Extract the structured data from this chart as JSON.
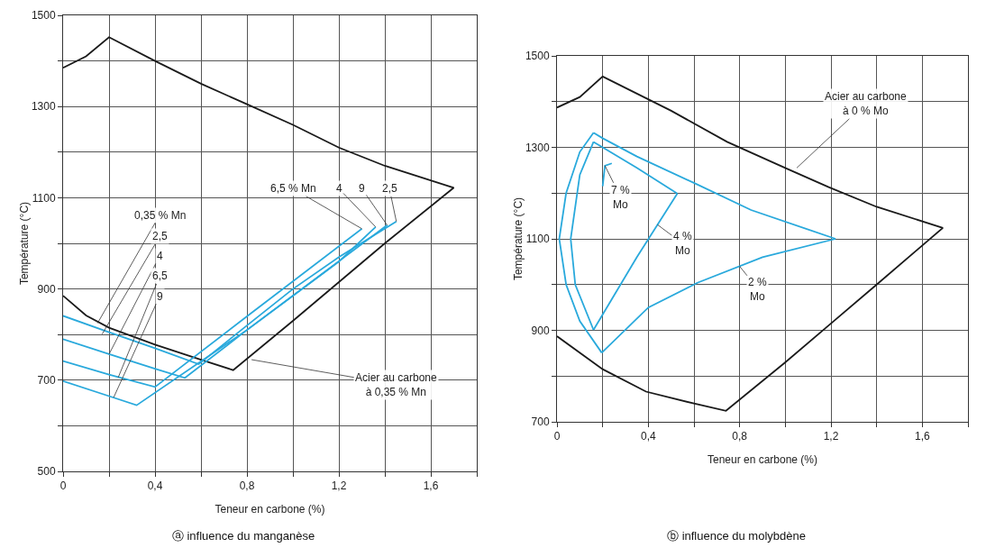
{
  "chart_data": [
    {
      "type": "line",
      "title": "ⓐ influence du manganèse",
      "xlabel": "Teneur en carbone (%)",
      "ylabel": "Température (°C)",
      "xlim": [
        0,
        1.8
      ],
      "ylim": [
        500,
        1500
      ],
      "xticks": [
        0,
        {
          "value": 0.2,
          "label": null
        },
        {
          "value": 0.4,
          "label": "0,4"
        },
        {
          "value": 0.6,
          "label": null
        },
        {
          "value": 0.8,
          "label": "0,8"
        },
        {
          "value": 1.0,
          "label": null
        },
        {
          "value": 1.2,
          "label": "1,2"
        },
        {
          "value": 1.4,
          "label": null
        },
        {
          "value": 1.6,
          "label": "1,6"
        },
        {
          "value": 1.8,
          "label": null
        }
      ],
      "yticks": [
        500,
        {
          "value": 600,
          "label": null
        },
        700,
        {
          "value": 800,
          "label": null
        },
        900,
        {
          "value": 1000,
          "label": null
        },
        1100,
        {
          "value": 1200,
          "label": null
        },
        1300,
        {
          "value": 1400,
          "label": null
        },
        1500
      ],
      "grid": true,
      "marker": "none",
      "line_style": "solid",
      "series": [
        {
          "color": "#1a1a1a",
          "x": [
            0,
            0.1,
            0.2,
            0.4,
            0.6,
            0.74,
            1.0,
            1.2,
            1.4,
            1.7,
            1.4,
            1.2,
            1.0,
            0.8,
            0.6,
            0.4,
            0.2,
            0.1,
            0
          ],
          "values": [
            885,
            842,
            815,
            778,
            745,
            722,
            830,
            915,
            1000,
            1122,
            1170,
            1210,
            1260,
            1305,
            1350,
            1400,
            1452,
            1410,
            1385
          ]
        },
        {
          "color": "#29a9dc",
          "x": [
            0,
            0.2,
            0.4,
            0.59,
            0.8,
            1.0,
            1.2,
            1.45
          ],
          "values": [
            841,
            805,
            770,
            735,
            820,
            900,
            970,
            1048
          ]
        },
        {
          "color": "#29a9dc",
          "x": [
            0,
            0.2,
            0.4,
            0.53,
            0.8,
            1.0,
            1.2,
            1.36
          ],
          "values": [
            790,
            757,
            725,
            705,
            810,
            885,
            960,
            1036
          ]
        },
        {
          "color": "#29a9dc",
          "x": [
            0,
            0.2,
            0.4,
            0.8,
            1.3
          ],
          "values": [
            742,
            712,
            685,
            840,
            1032
          ]
        },
        {
          "color": "#29a9dc",
          "x": [
            0,
            0.2,
            0.32,
            0.8,
            1.41
          ],
          "values": [
            698,
            665,
            645,
            810,
            1040
          ]
        }
      ],
      "annotations": [
        {
          "text": "0,35 % Mn",
          "x": 0.15,
          "y": 825
        },
        {
          "text": "2,5",
          "x": 0.17,
          "y": 801
        },
        {
          "text": "4",
          "x": 0.2,
          "y": 757
        },
        {
          "text": "6,5",
          "x": 0.24,
          "y": 706
        },
        {
          "text": "9",
          "x": 0.22,
          "y": 662
        },
        {
          "text": "6,5 % Mn",
          "x": 1.3,
          "y": 1032
        },
        {
          "text": "4",
          "x": 1.36,
          "y": 1036
        },
        {
          "text": "9",
          "x": 1.41,
          "y": 1040
        },
        {
          "text": "2,5",
          "x": 1.45,
          "y": 1048
        },
        {
          "text": "Acier au carbone\nà 0,35 % Mn",
          "x": 0.82,
          "y": 745
        }
      ]
    },
    {
      "type": "line",
      "title": "ⓑ influence du molybdène",
      "xlabel": "Teneur en carbone (%)",
      "ylabel": "Température (°C)",
      "xlim": [
        0,
        1.8
      ],
      "ylim": [
        700,
        1500
      ],
      "xticks": [
        0,
        {
          "value": 0.2,
          "label": null
        },
        {
          "value": 0.4,
          "label": "0,4"
        },
        {
          "value": 0.6,
          "label": null
        },
        {
          "value": 0.8,
          "label": "0,8"
        },
        {
          "value": 1.0,
          "label": null
        },
        {
          "value": 1.2,
          "label": "1,2"
        },
        {
          "value": 1.4,
          "label": null
        },
        {
          "value": 1.6,
          "label": "1,6"
        },
        {
          "value": 1.8,
          "label": null
        }
      ],
      "yticks": [
        700,
        {
          "value": 800,
          "label": null
        },
        900,
        {
          "value": 1000,
          "label": null
        },
        1100,
        {
          "value": 1200,
          "label": null
        },
        1300,
        {
          "value": 1400,
          "label": null
        },
        1500
      ],
      "grid": true,
      "marker": "none",
      "line_style": "solid",
      "series": [
        {
          "color": "#1a1a1a",
          "x": [
            0,
            0.2,
            0.39,
            0.6,
            0.74,
            1.0,
            1.2,
            1.4,
            1.69,
            1.4,
            1.19,
            1.0,
            0.745,
            0.5,
            0.2,
            0.1,
            0
          ],
          "values": [
            887,
            815,
            766,
            740,
            724,
            830,
            915,
            1000,
            1124,
            1170,
            1213,
            1255,
            1312,
            1380,
            1455,
            1410,
            1387
          ]
        },
        {
          "color": "#29a9dc",
          "x": [
            0.16,
            0.1,
            0.04,
            0.01,
            0.04,
            0.1,
            0.196
          ],
          "values": [
            1332,
            1290,
            1200,
            1100,
            1000,
            920,
            851
          ]
        },
        {
          "color": "#29a9dc",
          "x": [
            0.196,
            0.4,
            0.615,
            0.9,
            1.22
          ],
          "values": [
            851,
            950,
            1004,
            1060,
            1100
          ]
        },
        {
          "color": "#29a9dc",
          "x": [
            0.16,
            0.2,
            0.35,
            0.61,
            0.85,
            1.22
          ],
          "values": [
            1332,
            1320,
            1280,
            1220,
            1163,
            1100
          ]
        },
        {
          "color": "#29a9dc",
          "x": [
            0.16,
            0.1,
            0.06,
            0.08,
            0.16
          ],
          "values": [
            1312,
            1240,
            1100,
            1000,
            901
          ]
        },
        {
          "color": "#29a9dc",
          "x": [
            0.16,
            0.35,
            0.527
          ],
          "values": [
            901,
            1060,
            1199
          ]
        },
        {
          "color": "#29a9dc",
          "x": [
            0.16,
            0.2,
            0.35,
            0.527
          ],
          "values": [
            1312,
            1300,
            1255,
            1199
          ]
        },
        {
          "color": "#29a9dc",
          "x": [
            0.2,
            0.21,
            0.24
          ],
          "values": [
            1215,
            1260,
            1265
          ]
        }
      ],
      "annotations": [
        {
          "text": "Acier au carbone\nà 0 % Mo",
          "x": 1.05,
          "y": 1255
        },
        {
          "text": "7 %\nMo",
          "x": 0.21,
          "y": 1260
        },
        {
          "text": "4 %\nMo",
          "x": 0.44,
          "y": 1131
        },
        {
          "text": "2 %\nMo",
          "x": 0.8,
          "y": 1040
        }
      ]
    }
  ]
}
